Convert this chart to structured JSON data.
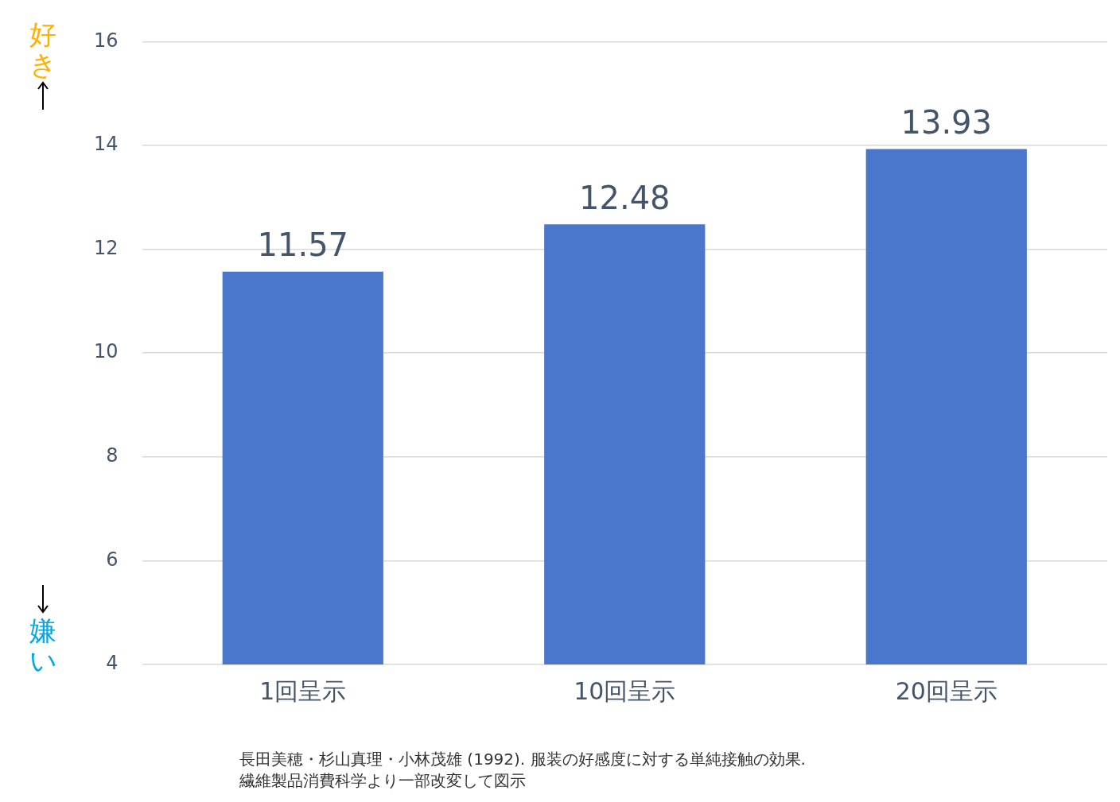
{
  "chart_data": {
    "type": "bar",
    "categories": [
      "1回呈示",
      "10回呈示",
      "20回呈示"
    ],
    "values": [
      11.57,
      12.48,
      13.93
    ],
    "color": "#4a77cc",
    "ylim": [
      4,
      16
    ],
    "yticks": [
      4,
      6,
      8,
      10,
      12,
      14,
      16
    ],
    "grid": "y",
    "data_labels": true,
    "legend": false,
    "annotations": [
      "好き",
      "嫌い",
      "長田美穂・杉山真理・小林茂雄 (1992). 服装の好感度に対する単純接触の効果.",
      "繊維製品消費科学より一部改変して図示"
    ]
  }
}
